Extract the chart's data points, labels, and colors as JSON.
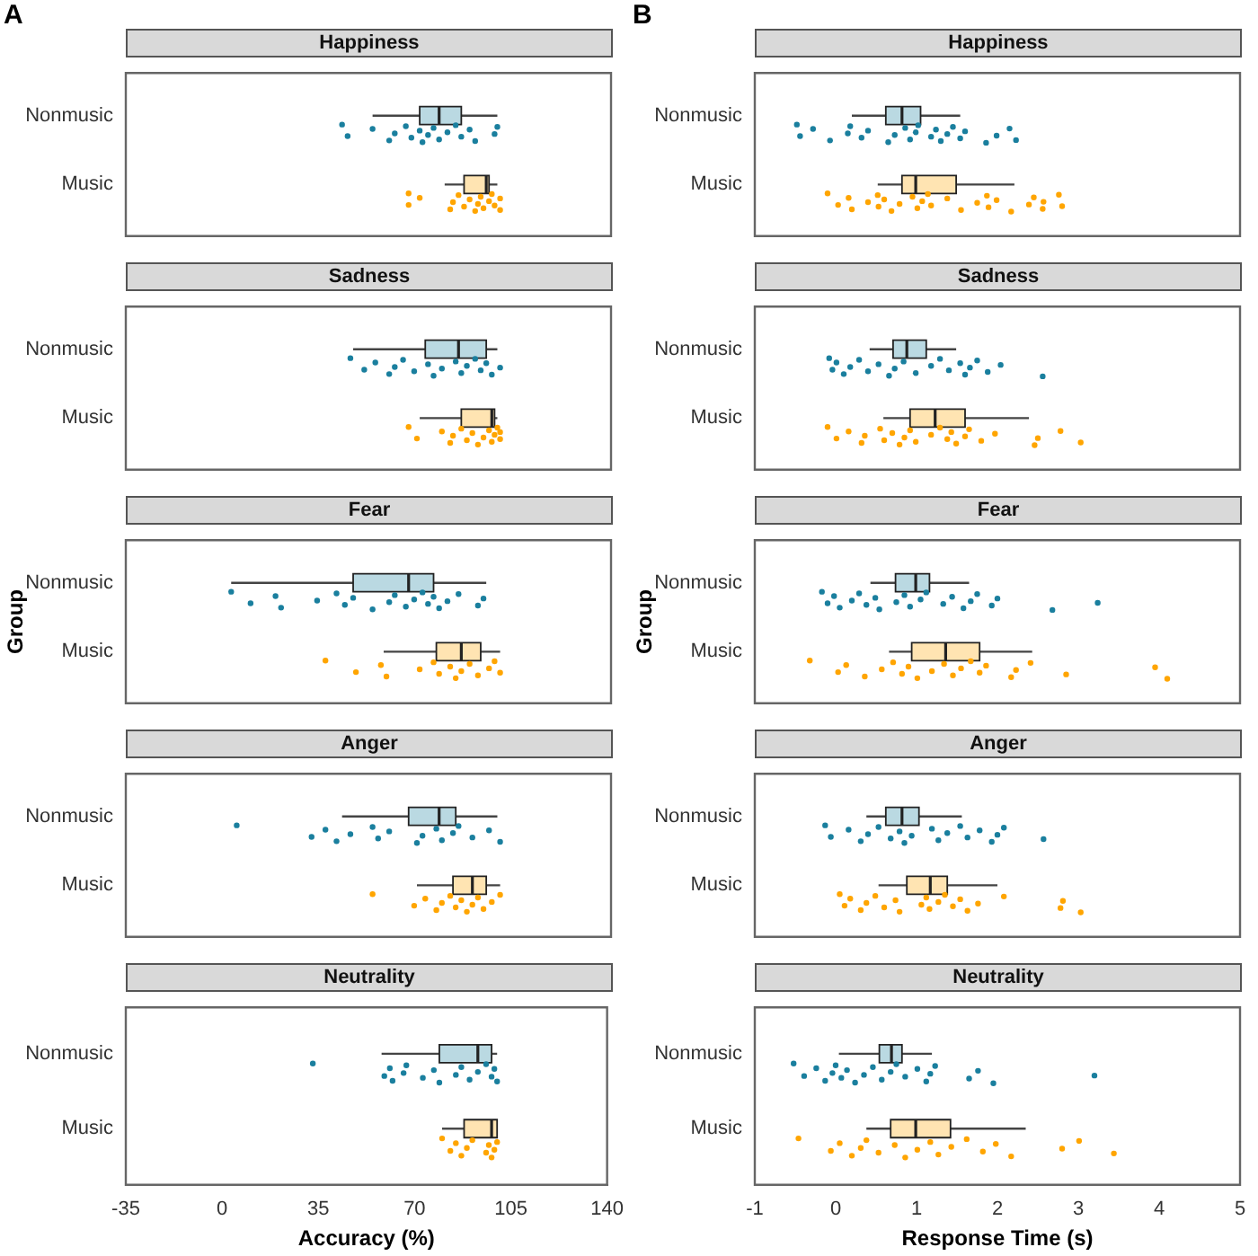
{
  "chart_data": [
    {
      "type": "box",
      "title": "Happiness",
      "annotations": [
        "A"
      ],
      "orientation": "horizontal",
      "categories": [
        "Nonmusic",
        "Music"
      ],
      "xlim": [
        -35,
        140
      ],
      "xticks": [
        -35,
        0,
        35,
        70,
        105,
        140
      ],
      "tick_labels": "y",
      "colors": [
        "#bad9e2",
        "#ffe4b2"
      ],
      "boxes": [
        {
          "low": 54,
          "q1": 71,
          "median": 78,
          "q3": 86,
          "high": 99
        },
        {
          "low": 80,
          "q1": 87,
          "median": 95,
          "q3": 96,
          "high": 99
        }
      ],
      "series": [
        {
          "type": "scatter",
          "color": "#1a7f9e",
          "x": [
            "Nonmusic",
            "Nonmusic",
            "Nonmusic",
            "Nonmusic",
            "Nonmusic",
            "Nonmusic",
            "Nonmusic",
            "Nonmusic",
            "Nonmusic",
            "Nonmusic",
            "Nonmusic",
            "Nonmusic",
            "Nonmusic",
            "Nonmusic",
            "Nonmusic",
            "Nonmusic",
            "Nonmusic",
            "Nonmusic",
            "Nonmusic"
          ],
          "values": [
            43,
            45,
            54,
            60,
            62,
            66,
            68,
            71,
            72,
            74,
            76,
            78,
            81,
            84,
            86,
            89,
            91,
            98,
            99
          ]
        },
        {
          "type": "scatter",
          "color": "#ffa500",
          "x": [
            "Music",
            "Music",
            "Music",
            "Music",
            "Music",
            "Music",
            "Music",
            "Music",
            "Music",
            "Music",
            "Music",
            "Music",
            "Music",
            "Music",
            "Music",
            "Music",
            "Music"
          ],
          "values": [
            67,
            67,
            71,
            82,
            83,
            85,
            87,
            89,
            91,
            92,
            93,
            94,
            96,
            97,
            98,
            100,
            100
          ]
        }
      ]
    },
    {
      "type": "box",
      "title": "Sadness",
      "orientation": "horizontal",
      "categories": [
        "Nonmusic",
        "Music"
      ],
      "xlim": [
        -35,
        140
      ],
      "xticks": [
        -35,
        0,
        35,
        70,
        105,
        140
      ],
      "tick_labels": "y",
      "colors": [
        "#bad9e2",
        "#ffe4b2"
      ],
      "boxes": [
        {
          "low": 47,
          "q1": 73,
          "median": 85,
          "q3": 95,
          "high": 99
        },
        {
          "low": 71,
          "q1": 86,
          "median": 97,
          "q3": 98,
          "high": 99
        }
      ],
      "series": [
        {
          "type": "scatter",
          "color": "#1a7f9e",
          "x": [
            "Nonmusic",
            "Nonmusic",
            "Nonmusic",
            "Nonmusic",
            "Nonmusic",
            "Nonmusic",
            "Nonmusic",
            "Nonmusic",
            "Nonmusic",
            "Nonmusic",
            "Nonmusic",
            "Nonmusic",
            "Nonmusic",
            "Nonmusic",
            "Nonmusic",
            "Nonmusic",
            "Nonmusic",
            "Nonmusic"
          ],
          "values": [
            46,
            51,
            55,
            60,
            62,
            65,
            69,
            74,
            76,
            79,
            84,
            86,
            88,
            91,
            93,
            95,
            97,
            100
          ]
        },
        {
          "type": "scatter",
          "color": "#ffa500",
          "x": [
            "Music",
            "Music",
            "Music",
            "Music",
            "Music",
            "Music",
            "Music",
            "Music",
            "Music",
            "Music",
            "Music",
            "Music",
            "Music",
            "Music",
            "Music",
            "Music"
          ],
          "values": [
            67,
            70,
            79,
            82,
            83,
            86,
            88,
            90,
            92,
            94,
            96,
            97,
            98,
            99,
            100,
            100
          ]
        }
      ]
    },
    {
      "type": "box",
      "title": "Fear",
      "ylabel": "Group",
      "orientation": "horizontal",
      "categories": [
        "Nonmusic",
        "Music"
      ],
      "xlim": [
        -35,
        140
      ],
      "xticks": [
        -35,
        0,
        35,
        70,
        105,
        140
      ],
      "tick_labels": "y",
      "colors": [
        "#bad9e2",
        "#ffe4b2"
      ],
      "boxes": [
        {
          "low": 3,
          "q1": 47,
          "median": 67,
          "q3": 76,
          "high": 95
        },
        {
          "low": 58,
          "q1": 77,
          "median": 86,
          "q3": 93,
          "high": 100
        }
      ],
      "series": [
        {
          "type": "scatter",
          "color": "#1a7f9e",
          "x": [
            "Nonmusic",
            "Nonmusic",
            "Nonmusic",
            "Nonmusic",
            "Nonmusic",
            "Nonmusic",
            "Nonmusic",
            "Nonmusic",
            "Nonmusic",
            "Nonmusic",
            "Nonmusic",
            "Nonmusic",
            "Nonmusic",
            "Nonmusic",
            "Nonmusic",
            "Nonmusic",
            "Nonmusic",
            "Nonmusic",
            "Nonmusic",
            "Nonmusic",
            "Nonmusic"
          ],
          "values": [
            3,
            10,
            19,
            21,
            34,
            41,
            44,
            47,
            54,
            60,
            62,
            66,
            69,
            72,
            74,
            76,
            78,
            81,
            85,
            92,
            94
          ]
        },
        {
          "type": "scatter",
          "color": "#ffa500",
          "x": [
            "Music",
            "Music",
            "Music",
            "Music",
            "Music",
            "Music",
            "Music",
            "Music",
            "Music",
            "Music",
            "Music",
            "Music",
            "Music",
            "Music",
            "Music"
          ],
          "values": [
            37,
            48,
            57,
            59,
            71,
            76,
            78,
            82,
            84,
            86,
            89,
            92,
            96,
            98,
            100
          ]
        }
      ]
    },
    {
      "type": "box",
      "title": "Anger",
      "orientation": "horizontal",
      "categories": [
        "Nonmusic",
        "Music"
      ],
      "xlim": [
        -35,
        140
      ],
      "xticks": [
        -35,
        0,
        35,
        70,
        105,
        140
      ],
      "tick_labels": "y",
      "colors": [
        "#bad9e2",
        "#ffe4b2"
      ],
      "boxes": [
        {
          "low": 43,
          "q1": 67,
          "median": 78,
          "q3": 84,
          "high": 99
        },
        {
          "low": 70,
          "q1": 83,
          "median": 90,
          "q3": 95,
          "high": 100
        }
      ],
      "series": [
        {
          "type": "scatter",
          "color": "#1a7f9e",
          "x": [
            "Nonmusic",
            "Nonmusic",
            "Nonmusic",
            "Nonmusic",
            "Nonmusic",
            "Nonmusic",
            "Nonmusic",
            "Nonmusic",
            "Nonmusic",
            "Nonmusic",
            "Nonmusic",
            "Nonmusic",
            "Nonmusic",
            "Nonmusic",
            "Nonmusic",
            "Nonmusic",
            "Nonmusic"
          ],
          "values": [
            5,
            32,
            37,
            41,
            46,
            54,
            56,
            60,
            70,
            72,
            77,
            79,
            83,
            85,
            90,
            96,
            100
          ]
        },
        {
          "type": "scatter",
          "color": "#ffa500",
          "x": [
            "Music",
            "Music",
            "Music",
            "Music",
            "Music",
            "Music",
            "Music",
            "Music",
            "Music",
            "Music",
            "Music",
            "Music",
            "Music",
            "Music"
          ],
          "values": [
            54,
            69,
            73,
            77,
            79,
            82,
            84,
            86,
            88,
            90,
            92,
            94,
            97,
            100
          ]
        }
      ]
    },
    {
      "type": "box",
      "title": "Neutrality",
      "xlabel": "Accuracy (%)",
      "orientation": "horizontal",
      "categories": [
        "Nonmusic",
        "Music"
      ],
      "xlim": [
        -35,
        140
      ],
      "xticks": [
        -35,
        0,
        35,
        70,
        105,
        140
      ],
      "colors": [
        "#bad9e2",
        "#ffe4b2"
      ],
      "boxes": [
        {
          "low": 58,
          "q1": 79,
          "median": 93,
          "q3": 98,
          "high": 100
        },
        {
          "low": 80,
          "q1": 88,
          "median": 98,
          "q3": 100,
          "high": 100
        }
      ],
      "series": [
        {
          "type": "scatter",
          "color": "#1a7f9e",
          "x": [
            "Nonmusic",
            "Nonmusic",
            "Nonmusic",
            "Nonmusic",
            "Nonmusic",
            "Nonmusic",
            "Nonmusic",
            "Nonmusic",
            "Nonmusic",
            "Nonmusic",
            "Nonmusic",
            "Nonmusic",
            "Nonmusic",
            "Nonmusic",
            "Nonmusic",
            "Nonmusic",
            "Nonmusic"
          ],
          "values": [
            33,
            59,
            61,
            62,
            66,
            67,
            73,
            77,
            79,
            85,
            87,
            90,
            93,
            96,
            98,
            99,
            100
          ]
        },
        {
          "type": "scatter",
          "color": "#ffa500",
          "x": [
            "Music",
            "Music",
            "Music",
            "Music",
            "Music",
            "Music",
            "Music",
            "Music",
            "Music",
            "Music",
            "Music"
          ],
          "values": [
            80,
            83,
            85,
            87,
            89,
            91,
            96,
            97,
            98,
            99,
            100
          ]
        }
      ]
    },
    {
      "type": "box",
      "title": "Happiness",
      "annotations": [
        "B"
      ],
      "orientation": "horizontal",
      "categories": [
        "Nonmusic",
        "Music"
      ],
      "xlim": [
        -1,
        5
      ],
      "xticks": [
        -1,
        0,
        1,
        2,
        3,
        4,
        5
      ],
      "tick_labels": "y",
      "colors": [
        "#bad9e2",
        "#ffe4b2"
      ],
      "boxes": [
        {
          "low": 0.2,
          "q1": 0.62,
          "median": 0.82,
          "q3": 1.05,
          "high": 1.54
        },
        {
          "low": 0.52,
          "q1": 0.82,
          "median": 0.99,
          "q3": 1.49,
          "high": 2.21
        }
      ],
      "series": [
        {
          "type": "scatter",
          "color": "#1a7f9e",
          "x": [
            "Nonmusic",
            "Nonmusic",
            "Nonmusic",
            "Nonmusic",
            "Nonmusic",
            "Nonmusic",
            "Nonmusic",
            "Nonmusic",
            "Nonmusic",
            "Nonmusic",
            "Nonmusic",
            "Nonmusic",
            "Nonmusic",
            "Nonmusic",
            "Nonmusic",
            "Nonmusic",
            "Nonmusic",
            "Nonmusic",
            "Nonmusic",
            "Nonmusic",
            "Nonmusic",
            "Nonmusic",
            "Nonmusic",
            "Nonmusic",
            "Nonmusic"
          ],
          "values": [
            -0.48,
            -0.44,
            -0.28,
            -0.07,
            0.15,
            0.18,
            0.32,
            0.4,
            0.65,
            0.73,
            0.86,
            0.92,
            0.99,
            1.02,
            1.18,
            1.24,
            1.3,
            1.38,
            1.45,
            1.54,
            1.6,
            1.86,
            1.99,
            2.15,
            2.23
          ]
        },
        {
          "type": "scatter",
          "color": "#ffa500",
          "x": [
            "Music",
            "Music",
            "Music",
            "Music",
            "Music",
            "Music",
            "Music",
            "Music",
            "Music",
            "Music",
            "Music",
            "Music",
            "Music",
            "Music",
            "Music",
            "Music",
            "Music",
            "Music",
            "Music",
            "Music",
            "Music",
            "Music",
            "Music",
            "Music",
            "Music",
            "Music",
            "Music",
            "Music"
          ],
          "values": [
            -0.1,
            0.03,
            0.16,
            0.2,
            0.4,
            0.52,
            0.53,
            0.6,
            0.69,
            0.79,
            0.95,
            1.01,
            1.07,
            1.14,
            1.18,
            1.38,
            1.55,
            1.75,
            1.87,
            1.89,
            1.99,
            2.17,
            2.39,
            2.45,
            2.56,
            2.57,
            2.76,
            2.8
          ]
        }
      ]
    },
    {
      "type": "box",
      "title": "Sadness",
      "orientation": "horizontal",
      "categories": [
        "Nonmusic",
        "Music"
      ],
      "xlim": [
        -1,
        5
      ],
      "xticks": [
        -1,
        0,
        1,
        2,
        3,
        4,
        5
      ],
      "tick_labels": "y",
      "colors": [
        "#bad9e2",
        "#ffe4b2"
      ],
      "boxes": [
        {
          "low": 0.42,
          "q1": 0.71,
          "median": 0.88,
          "q3": 1.12,
          "high": 1.49
        },
        {
          "low": 0.59,
          "q1": 0.92,
          "median": 1.23,
          "q3": 1.6,
          "high": 2.39
        }
      ],
      "series": [
        {
          "type": "scatter",
          "color": "#1a7f9e",
          "x": [
            "Nonmusic",
            "Nonmusic",
            "Nonmusic",
            "Nonmusic",
            "Nonmusic",
            "Nonmusic",
            "Nonmusic",
            "Nonmusic",
            "Nonmusic",
            "Nonmusic",
            "Nonmusic",
            "Nonmusic",
            "Nonmusic",
            "Nonmusic",
            "Nonmusic",
            "Nonmusic",
            "Nonmusic",
            "Nonmusic",
            "Nonmusic",
            "Nonmusic",
            "Nonmusic",
            "Nonmusic"
          ],
          "values": [
            -0.08,
            -0.04,
            0.01,
            0.1,
            0.18,
            0.29,
            0.4,
            0.53,
            0.66,
            0.73,
            0.84,
            0.99,
            1.18,
            1.29,
            1.4,
            1.54,
            1.6,
            1.66,
            1.75,
            1.88,
            2.04,
            2.56
          ]
        },
        {
          "type": "scatter",
          "color": "#ffa500",
          "x": [
            "Music",
            "Music",
            "Music",
            "Music",
            "Music",
            "Music",
            "Music",
            "Music",
            "Music",
            "Music",
            "Music",
            "Music",
            "Music",
            "Music",
            "Music",
            "Music",
            "Music",
            "Music",
            "Music",
            "Music",
            "Music",
            "Music",
            "Music",
            "Music",
            "Music"
          ],
          "values": [
            -0.1,
            0.01,
            0.16,
            0.32,
            0.36,
            0.55,
            0.6,
            0.7,
            0.79,
            0.85,
            0.92,
            0.99,
            1.18,
            1.29,
            1.38,
            1.43,
            1.49,
            1.6,
            1.65,
            1.8,
            1.97,
            2.46,
            2.5,
            2.78,
            3.03
          ]
        }
      ]
    },
    {
      "type": "box",
      "title": "Fear",
      "ylabel": "Group",
      "orientation": "horizontal",
      "categories": [
        "Nonmusic",
        "Music"
      ],
      "xlim": [
        -1,
        5
      ],
      "xticks": [
        -1,
        0,
        1,
        2,
        3,
        4,
        5
      ],
      "tick_labels": "y",
      "colors": [
        "#bad9e2",
        "#ffe4b2"
      ],
      "boxes": [
        {
          "low": 0.43,
          "q1": 0.74,
          "median": 0.99,
          "q3": 1.16,
          "high": 1.65
        },
        {
          "low": 0.66,
          "q1": 0.94,
          "median": 1.36,
          "q3": 1.78,
          "high": 2.43
        }
      ],
      "series": [
        {
          "type": "scatter",
          "color": "#1a7f9e",
          "x": [
            "Nonmusic",
            "Nonmusic",
            "Nonmusic",
            "Nonmusic",
            "Nonmusic",
            "Nonmusic",
            "Nonmusic",
            "Nonmusic",
            "Nonmusic",
            "Nonmusic",
            "Nonmusic",
            "Nonmusic",
            "Nonmusic",
            "Nonmusic",
            "Nonmusic",
            "Nonmusic",
            "Nonmusic",
            "Nonmusic",
            "Nonmusic",
            "Nonmusic",
            "Nonmusic",
            "Nonmusic",
            "Nonmusic"
          ],
          "values": [
            -0.17,
            -0.1,
            -0.02,
            0.05,
            0.2,
            0.29,
            0.38,
            0.49,
            0.54,
            0.75,
            0.85,
            0.92,
            1.05,
            1.12,
            1.33,
            1.44,
            1.58,
            1.67,
            1.75,
            1.93,
            2,
            2.68,
            3.24
          ]
        },
        {
          "type": "scatter",
          "color": "#ffa500",
          "x": [
            "Music",
            "Music",
            "Music",
            "Music",
            "Music",
            "Music",
            "Music",
            "Music",
            "Music",
            "Music",
            "Music",
            "Music",
            "Music",
            "Music",
            "Music",
            "Music",
            "Music",
            "Music",
            "Music",
            "Music",
            "Music",
            "Music"
          ],
          "values": [
            -0.32,
            0.03,
            0.13,
            0.36,
            0.57,
            0.71,
            0.82,
            0.9,
            1.01,
            1.19,
            1.34,
            1.45,
            1.55,
            1.67,
            1.78,
            1.86,
            2.17,
            2.23,
            2.41,
            2.85,
            3.95,
            4.1
          ]
        }
      ]
    },
    {
      "type": "box",
      "title": "Anger",
      "orientation": "horizontal",
      "categories": [
        "Nonmusic",
        "Music"
      ],
      "xlim": [
        -1,
        5
      ],
      "xticks": [
        -1,
        0,
        1,
        2,
        3,
        4,
        5
      ],
      "tick_labels": "y",
      "colors": [
        "#bad9e2",
        "#ffe4b2"
      ],
      "boxes": [
        {
          "low": 0.38,
          "q1": 0.62,
          "median": 0.82,
          "q3": 1.03,
          "high": 1.56
        },
        {
          "low": 0.53,
          "q1": 0.88,
          "median": 1.17,
          "q3": 1.38,
          "high": 2
        }
      ],
      "series": [
        {
          "type": "scatter",
          "color": "#1a7f9e",
          "x": [
            "Nonmusic",
            "Nonmusic",
            "Nonmusic",
            "Nonmusic",
            "Nonmusic",
            "Nonmusic",
            "Nonmusic",
            "Nonmusic",
            "Nonmusic",
            "Nonmusic",
            "Nonmusic",
            "Nonmusic",
            "Nonmusic",
            "Nonmusic",
            "Nonmusic",
            "Nonmusic",
            "Nonmusic",
            "Nonmusic",
            "Nonmusic",
            "Nonmusic"
          ],
          "values": [
            -0.13,
            -0.06,
            0.16,
            0.31,
            0.4,
            0.53,
            0.68,
            0.79,
            0.85,
            0.94,
            1.19,
            1.27,
            1.38,
            1.54,
            1.63,
            1.78,
            1.93,
            2,
            2.08,
            2.57
          ]
        },
        {
          "type": "scatter",
          "color": "#ffa500",
          "x": [
            "Music",
            "Music",
            "Music",
            "Music",
            "Music",
            "Music",
            "Music",
            "Music",
            "Music",
            "Music",
            "Music",
            "Music",
            "Music",
            "Music",
            "Music",
            "Music",
            "Music",
            "Music",
            "Music",
            "Music",
            "Music",
            "Music"
          ],
          "values": [
            0.05,
            0.11,
            0.18,
            0.31,
            0.38,
            0.49,
            0.6,
            0.74,
            0.79,
            1.06,
            1.12,
            1.16,
            1.27,
            1.35,
            1.45,
            1.54,
            1.63,
            1.76,
            2.08,
            2.78,
            2.81,
            3.03
          ]
        }
      ]
    },
    {
      "type": "box",
      "title": "Neutrality",
      "xlabel": "Response Time (s)",
      "orientation": "horizontal",
      "categories": [
        "Nonmusic",
        "Music"
      ],
      "xlim": [
        -1,
        5
      ],
      "xticks": [
        -1,
        0,
        1,
        2,
        3,
        4,
        5
      ],
      "colors": [
        "#bad9e2",
        "#ffe4b2"
      ],
      "boxes": [
        {
          "low": 0.04,
          "q1": 0.54,
          "median": 0.69,
          "q3": 0.82,
          "high": 1.19
        },
        {
          "low": 0.38,
          "q1": 0.68,
          "median": 0.99,
          "q3": 1.42,
          "high": 2.35
        }
      ],
      "series": [
        {
          "type": "scatter",
          "color": "#1a7f9e",
          "x": [
            "Nonmusic",
            "Nonmusic",
            "Nonmusic",
            "Nonmusic",
            "Nonmusic",
            "Nonmusic",
            "Nonmusic",
            "Nonmusic",
            "Nonmusic",
            "Nonmusic",
            "Nonmusic",
            "Nonmusic",
            "Nonmusic",
            "Nonmusic",
            "Nonmusic",
            "Nonmusic",
            "Nonmusic",
            "Nonmusic",
            "Nonmusic",
            "Nonmusic",
            "Nonmusic",
            "Nonmusic",
            "Nonmusic"
          ],
          "values": [
            -0.52,
            -0.39,
            -0.24,
            -0.13,
            -0.04,
            0,
            0.07,
            0.14,
            0.24,
            0.35,
            0.46,
            0.57,
            0.68,
            0.75,
            0.86,
            1.01,
            1.12,
            1.17,
            1.23,
            1.65,
            1.76,
            1.95,
            3.2
          ]
        },
        {
          "type": "scatter",
          "color": "#ffa500",
          "x": [
            "Music",
            "Music",
            "Music",
            "Music",
            "Music",
            "Music",
            "Music",
            "Music",
            "Music",
            "Music",
            "Music",
            "Music",
            "Music",
            "Music",
            "Music",
            "Music",
            "Music",
            "Music",
            "Music",
            "Music"
          ],
          "values": [
            -0.46,
            -0.06,
            0.05,
            0.2,
            0.31,
            0.38,
            0.53,
            0.73,
            0.86,
            1.01,
            1.17,
            1.27,
            1.43,
            1.62,
            1.82,
            1.98,
            2.17,
            2.8,
            3.01,
            3.44
          ]
        }
      ]
    }
  ]
}
